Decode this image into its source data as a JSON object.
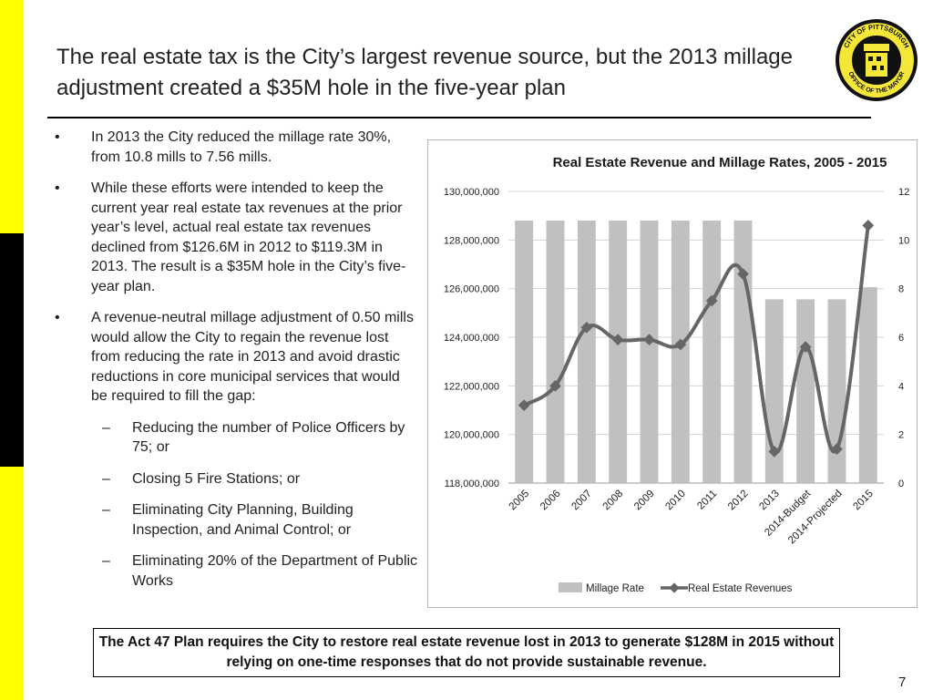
{
  "slide": {
    "title": "The real estate tax is the City’s largest revenue source, but the 2013 millage adjustment created a $35M hole in the five-year plan",
    "page_number": "7",
    "colors": {
      "accent_yellow": "#ffff00",
      "bar": "#c0c0c0",
      "line": "#666666"
    }
  },
  "seal": {
    "icon": "city-of-pittsburgh-seal-icon",
    "top_text": "CITY OF PITTSBURGH",
    "bottom_text": "OFFICE OF THE MAYOR"
  },
  "bullets": [
    {
      "mark": "•",
      "text": "In 2013 the City reduced the millage rate 30%, from 10.8 mills to 7.56 mills."
    },
    {
      "mark": "•",
      "text": "While these efforts were intended to keep the current year real estate tax revenues at the prior year’s level, actual real estate tax revenues declined from $126.6M in 2012 to $119.3M in 2013. The result is a $35M hole in the City’s five-year plan."
    },
    {
      "mark": "•",
      "text": "A revenue-neutral millage adjustment of 0.50 mills would allow the City to regain the revenue lost from reducing the rate in 2013 and avoid drastic reductions in core municipal services that would be required to fill the gap:"
    }
  ],
  "sub_bullets": [
    {
      "mark": "–",
      "text": "Reducing the number of Police Officers by 75; or"
    },
    {
      "mark": "–",
      "text": "Closing 5 Fire Stations; or"
    },
    {
      "mark": "–",
      "text": "Eliminating City Planning, Building Inspection, and Animal Control; or"
    },
    {
      "mark": "–",
      "text": "Eliminating 20% of the Department of Public Works"
    }
  ],
  "callout": {
    "text": "The Act 47 Plan requires the City to restore real estate revenue lost in 2013 to generate $128M in 2015 without relying on one-time responses that do not provide sustainable revenue."
  },
  "chart_data": {
    "type": "bar",
    "title": "Real Estate Revenue and Millage Rates, 2005 - 2015",
    "categories": [
      "2005",
      "2006",
      "2007",
      "2008",
      "2009",
      "2010",
      "2011",
      "2012",
      "2013",
      "2014-Budget",
      "2014-Projected",
      "2015"
    ],
    "series": [
      {
        "name": "Millage Rate",
        "type": "bar",
        "axis": "right",
        "values": [
          10.8,
          10.8,
          10.8,
          10.8,
          10.8,
          10.8,
          10.8,
          10.8,
          7.56,
          7.56,
          7.56,
          8.06
        ]
      },
      {
        "name": "Real Estate Revenues",
        "type": "line",
        "axis": "left",
        "values": [
          121200000,
          122000000,
          124400000,
          123900000,
          123900000,
          123700000,
          125500000,
          126600000,
          119300000,
          123600000,
          119400000,
          128600000
        ]
      }
    ],
    "y_left": {
      "min": 118000000,
      "max": 130000000,
      "ticks": [
        "130,000,000",
        "128,000,000",
        "126,000,000",
        "124,000,000",
        "122,000,000",
        "120,000,000",
        "118,000,000"
      ]
    },
    "y_right": {
      "min": 0,
      "max": 12,
      "ticks": [
        "12",
        "10",
        "8",
        "6",
        "4",
        "2",
        "0"
      ]
    },
    "grid": true,
    "legend_position": "bottom"
  }
}
